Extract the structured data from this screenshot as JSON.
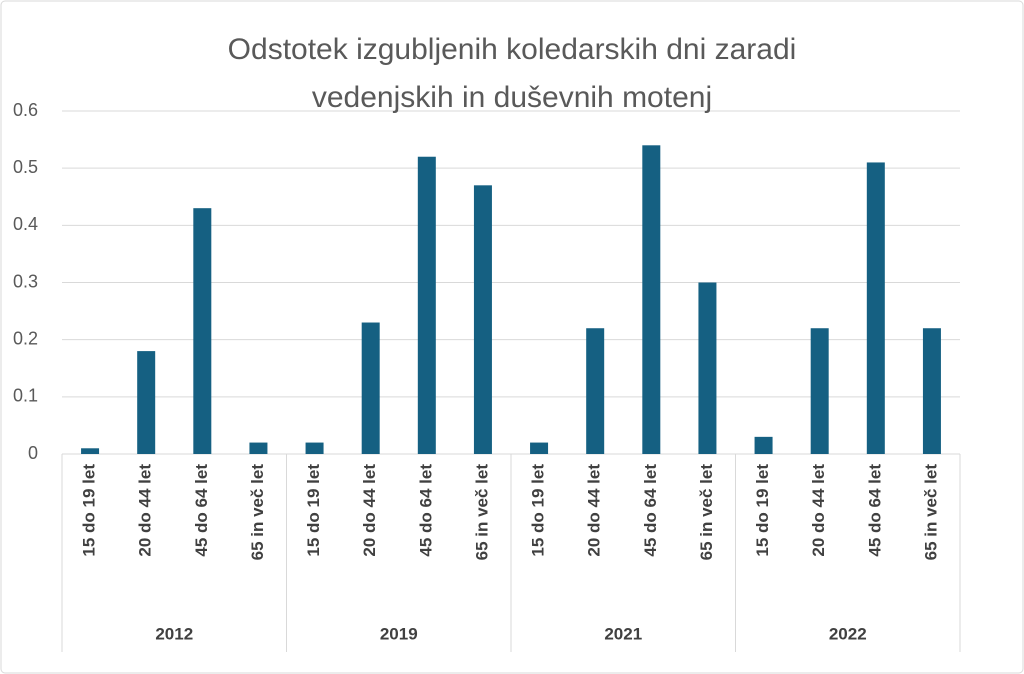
{
  "chart_data": {
    "type": "bar",
    "title": "Odstotek izgubljenih koledarskih dni zaradi vedenjskih in duševnih motenj",
    "groups": [
      "2012",
      "2019",
      "2021",
      "2022"
    ],
    "categories": [
      "15 do 19 let",
      "20 do 44 let",
      "45 do 64 let",
      "65 in več let",
      "15 do 19 let",
      "20 do 44 let",
      "45 do 64 let",
      "65 in več let",
      "15 do 19 let",
      "20 do 44 let",
      "45 do 64 let",
      "65 in več let",
      "15 do 19 let",
      "20 do 44 let",
      "45 do 64 let",
      "65 in več let"
    ],
    "values": [
      0.01,
      0.18,
      0.43,
      0.02,
      0.02,
      0.23,
      0.52,
      0.47,
      0.02,
      0.22,
      0.54,
      0.3,
      0.03,
      0.22,
      0.51,
      0.22
    ],
    "color": "#156082",
    "ylim": [
      0,
      0.6
    ],
    "yticks": [
      0,
      0.1,
      0.2,
      0.3,
      0.4,
      0.5,
      0.6
    ],
    "grid": true
  }
}
